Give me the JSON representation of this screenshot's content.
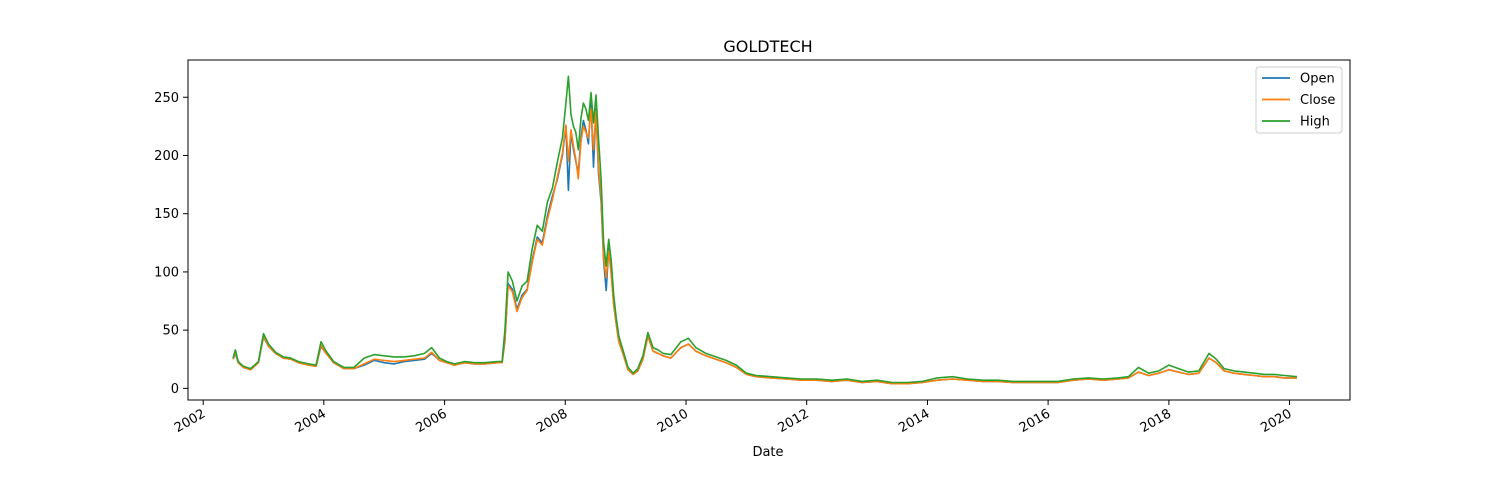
{
  "chart_data": {
    "type": "line",
    "title": "GOLDTECH",
    "xlabel": "Date",
    "ylabel": "",
    "xlim": [
      "2001-10-01",
      "2021-01-01"
    ],
    "ylim": [
      -10,
      282
    ],
    "x_ticks": [
      "2002-01-01",
      "2004-01-01",
      "2006-01-01",
      "2008-01-01",
      "2010-01-01",
      "2012-01-01",
      "2014-01-01",
      "2016-01-01",
      "2018-01-01",
      "2020-01-01"
    ],
    "x_tick_labels": [
      "2002",
      "2004",
      "2006",
      "2008",
      "2010",
      "2012",
      "2014",
      "2016",
      "2018",
      "2020"
    ],
    "y_ticks": [
      0,
      50,
      100,
      150,
      200,
      250
    ],
    "y_tick_labels": [
      "0",
      "50",
      "100",
      "150",
      "200",
      "250"
    ],
    "grid": false,
    "legend_position": "top-right",
    "x": [
      "2002-07-01",
      "2002-07-15",
      "2002-08-01",
      "2002-09-01",
      "2002-10-15",
      "2002-12-01",
      "2003-01-01",
      "2003-02-01",
      "2003-03-15",
      "2003-05-01",
      "2003-06-15",
      "2003-08-01",
      "2003-10-01",
      "2003-11-15",
      "2003-12-15",
      "2004-01-15",
      "2004-03-01",
      "2004-05-01",
      "2004-07-01",
      "2004-09-01",
      "2004-11-01",
      "2005-01-01",
      "2005-03-01",
      "2005-05-01",
      "2005-07-01",
      "2005-09-01",
      "2005-10-15",
      "2005-12-01",
      "2006-01-15",
      "2006-03-01",
      "2006-05-01",
      "2006-07-01",
      "2006-09-01",
      "2006-11-15",
      "2006-12-15",
      "2007-01-01",
      "2007-01-20",
      "2007-02-15",
      "2007-03-15",
      "2007-04-15",
      "2007-05-15",
      "2007-06-15",
      "2007-07-15",
      "2007-08-15",
      "2007-09-15",
      "2007-10-15",
      "2007-11-15",
      "2007-12-15",
      "2008-01-05",
      "2008-01-20",
      "2008-02-05",
      "2008-02-20",
      "2008-03-05",
      "2008-03-20",
      "2008-04-05",
      "2008-04-20",
      "2008-05-05",
      "2008-05-20",
      "2008-06-05",
      "2008-06-20",
      "2008-07-05",
      "2008-07-20",
      "2008-08-05",
      "2008-08-20",
      "2008-09-05",
      "2008-09-20",
      "2008-10-05",
      "2008-10-20",
      "2008-11-05",
      "2008-11-20",
      "2008-12-15",
      "2009-01-15",
      "2009-02-15",
      "2009-03-15",
      "2009-04-15",
      "2009-05-15",
      "2009-06-15",
      "2009-07-15",
      "2009-08-15",
      "2009-10-01",
      "2009-12-01",
      "2010-01-15",
      "2010-03-01",
      "2010-05-01",
      "2010-07-01",
      "2010-09-01",
      "2010-11-01",
      "2011-01-01",
      "2011-03-01",
      "2011-06-01",
      "2011-09-01",
      "2011-12-01",
      "2012-03-01",
      "2012-06-01",
      "2012-09-01",
      "2012-12-01",
      "2013-03-01",
      "2013-06-01",
      "2013-09-01",
      "2013-12-01",
      "2014-03-01",
      "2014-06-01",
      "2014-09-01",
      "2014-12-01",
      "2015-03-01",
      "2015-06-01",
      "2015-09-01",
      "2015-12-01",
      "2016-03-01",
      "2016-06-01",
      "2016-09-01",
      "2016-12-01",
      "2017-03-01",
      "2017-05-01",
      "2017-07-01",
      "2017-09-01",
      "2017-11-01",
      "2018-01-01",
      "2018-03-01",
      "2018-05-01",
      "2018-07-01",
      "2018-09-01",
      "2018-10-15",
      "2018-12-01",
      "2019-02-01",
      "2019-04-01",
      "2019-06-01",
      "2019-08-01",
      "2019-10-01",
      "2019-12-01",
      "2020-02-15"
    ],
    "series": [
      {
        "name": "Open",
        "color": "#1f77b4",
        "values": [
          25,
          30,
          22,
          18,
          16,
          22,
          44,
          36,
          30,
          26,
          25,
          22,
          20,
          19,
          36,
          30,
          22,
          17,
          17,
          20,
          24,
          22,
          21,
          23,
          24,
          25,
          30,
          24,
          22,
          20,
          22,
          21,
          21,
          22,
          22,
          40,
          90,
          85,
          68,
          80,
          85,
          110,
          130,
          125,
          148,
          165,
          180,
          200,
          225,
          170,
          220,
          205,
          195,
          185,
          215,
          230,
          222,
          210,
          245,
          190,
          240,
          185,
          160,
          110,
          84,
          120,
          100,
          72,
          55,
          40,
          30,
          16,
          12,
          15,
          25,
          45,
          32,
          30,
          28,
          26,
          35,
          38,
          32,
          28,
          25,
          22,
          18,
          12,
          10,
          9,
          8,
          7,
          7,
          6,
          7,
          5,
          6,
          4,
          4,
          5,
          7,
          8,
          7,
          6,
          6,
          5,
          5,
          5,
          5,
          7,
          8,
          7,
          8,
          9,
          14,
          11,
          13,
          16,
          14,
          12,
          13,
          26,
          22,
          15,
          13,
          12,
          11,
          10,
          10,
          9,
          9
        ]
      },
      {
        "name": "Close",
        "color": "#ff7f0e",
        "values": [
          25,
          31,
          22,
          18,
          16,
          22,
          45,
          36,
          30,
          26,
          25,
          22,
          20,
          19,
          37,
          30,
          22,
          17,
          17,
          21,
          25,
          24,
          23,
          24,
          25,
          26,
          31,
          24,
          22,
          20,
          22,
          21,
          21,
          22,
          22,
          42,
          88,
          83,
          66,
          78,
          84,
          108,
          128,
          123,
          145,
          162,
          182,
          202,
          226,
          195,
          222,
          208,
          197,
          180,
          212,
          225,
          220,
          215,
          240,
          205,
          238,
          190,
          165,
          112,
          95,
          118,
          98,
          72,
          55,
          40,
          30,
          16,
          12,
          15,
          25,
          45,
          32,
          30,
          28,
          26,
          35,
          38,
          32,
          28,
          25,
          22,
          18,
          12,
          10,
          9,
          8,
          7,
          7,
          6,
          7,
          5,
          6,
          4,
          4,
          5,
          7,
          8,
          7,
          6,
          6,
          5,
          5,
          5,
          5,
          7,
          8,
          7,
          8,
          9,
          14,
          11,
          13,
          16,
          14,
          12,
          13,
          26,
          22,
          15,
          13,
          12,
          11,
          10,
          10,
          9,
          9
        ]
      },
      {
        "name": "High",
        "color": "#2ca02c",
        "values": [
          26,
          33,
          23,
          19,
          17,
          23,
          47,
          38,
          31,
          27,
          26,
          23,
          21,
          20,
          40,
          32,
          23,
          18,
          18,
          26,
          29,
          28,
          27,
          27,
          28,
          30,
          35,
          26,
          23,
          21,
          23,
          22,
          22,
          23,
          23,
          50,
          100,
          92,
          75,
          88,
          92,
          120,
          140,
          135,
          160,
          172,
          195,
          215,
          245,
          268,
          235,
          225,
          220,
          205,
          232,
          245,
          240,
          230,
          254,
          228,
          252,
          215,
          180,
          125,
          105,
          128,
          110,
          80,
          60,
          45,
          33,
          18,
          13,
          17,
          28,
          48,
          35,
          33,
          30,
          29,
          40,
          43,
          35,
          30,
          27,
          24,
          20,
          13,
          11,
          10,
          9,
          8,
          8,
          7,
          8,
          6,
          7,
          5,
          5,
          6,
          9,
          10,
          8,
          7,
          7,
          6,
          6,
          6,
          6,
          8,
          9,
          8,
          9,
          10,
          18,
          13,
          15,
          20,
          17,
          14,
          15,
          30,
          25,
          17,
          15,
          14,
          13,
          12,
          12,
          11,
          10
        ]
      }
    ]
  }
}
